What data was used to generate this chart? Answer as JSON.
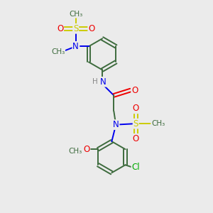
{
  "bg_color": "#ebebeb",
  "bond_color": "#3d6b3d",
  "N_color": "#0000ee",
  "O_color": "#ee0000",
  "S_color": "#cccc00",
  "Cl_color": "#00aa00",
  "H_color": "#888888",
  "figsize": [
    3.0,
    3.0
  ],
  "dpi": 100,
  "xlim": [
    0,
    10
  ],
  "ylim": [
    0,
    10
  ]
}
